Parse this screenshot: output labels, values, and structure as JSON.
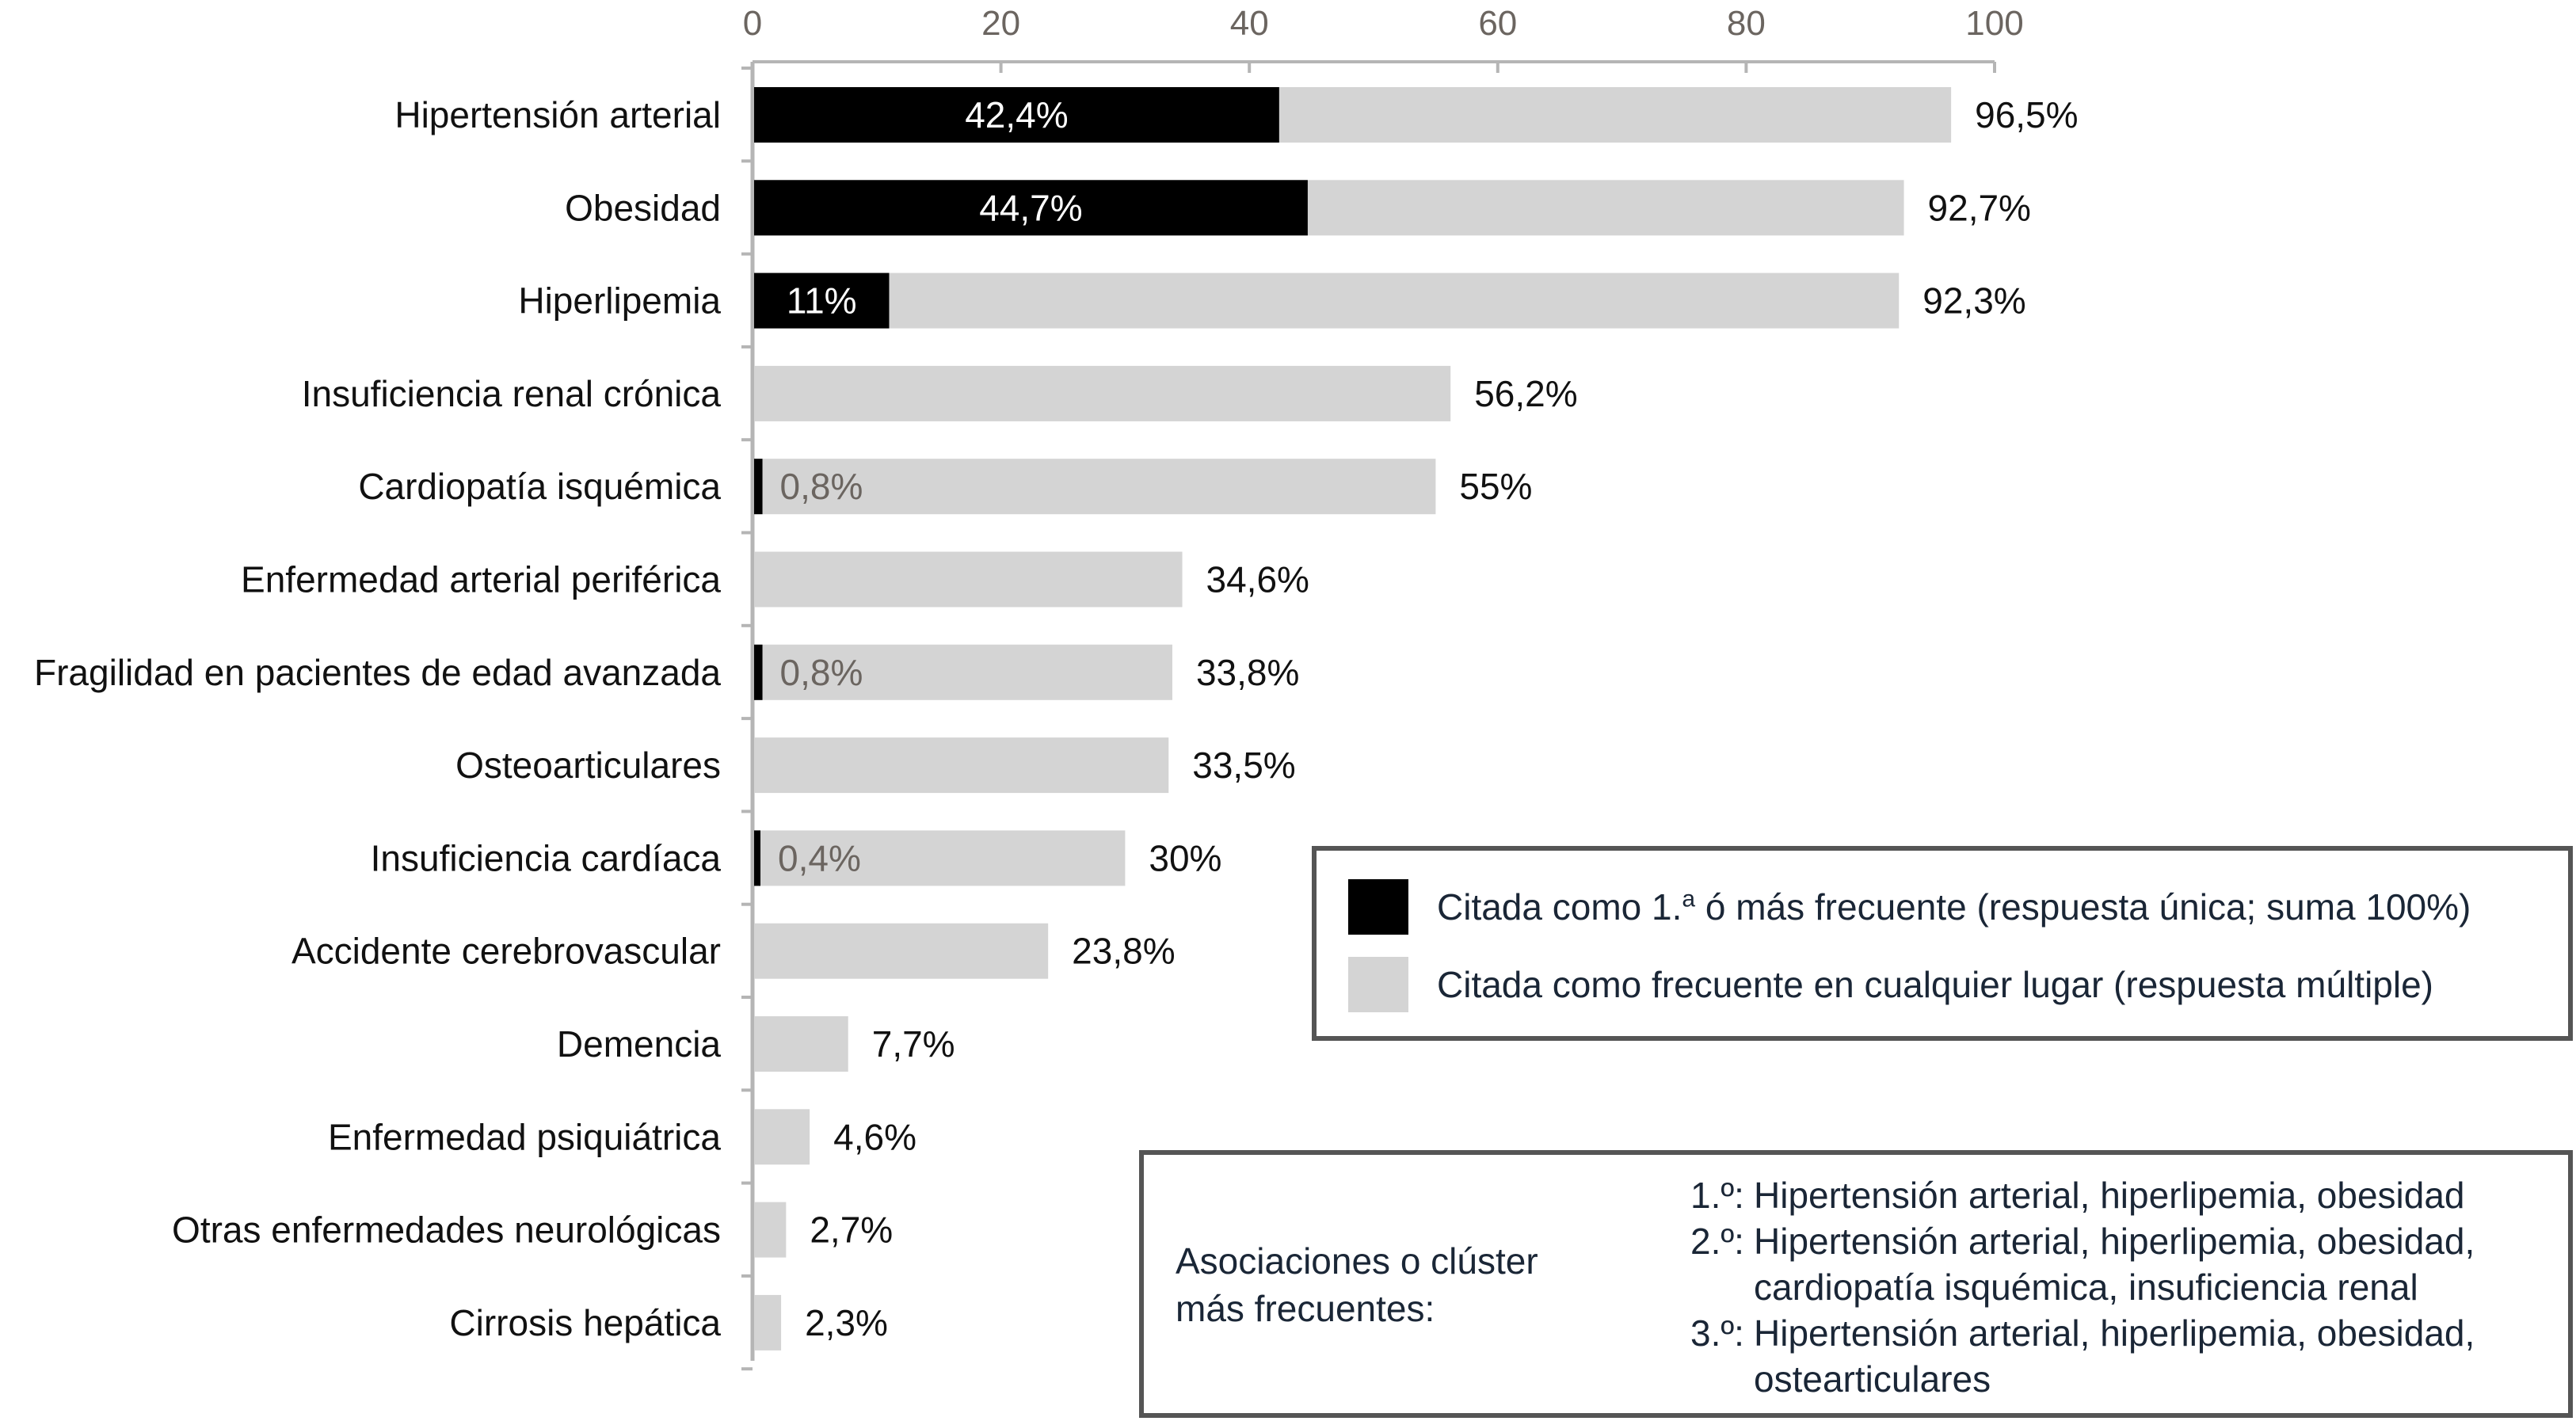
{
  "chart_data": {
    "type": "bar",
    "orientation": "horizontal",
    "xlim": [
      0,
      100
    ],
    "x_ticks": [
      "0",
      "20",
      "40",
      "60",
      "80",
      "100"
    ],
    "grid": false,
    "categories": [
      "Hipertensión arterial",
      "Obesidad",
      "Hiperlipemia",
      "Insuficiencia renal crónica",
      "Cardiopatía isquémica",
      "Enfermedad arterial periférica",
      "Fragilidad en pacientes de edad avanzada",
      "Osteoarticulares",
      "Insuficiencia cardíaca",
      "Accidente cerebrovascular",
      "Demencia",
      "Enfermedad psiquiátrica",
      "Otras enfermedades neurológicas",
      "Cirrosis hepática"
    ],
    "series": [
      {
        "name": "Citada como 1.ª ó más frecuente (respuesta única; suma 100%)",
        "color": "#000000",
        "values": [
          42.4,
          44.7,
          11,
          null,
          0.8,
          null,
          0.8,
          null,
          0.4,
          null,
          null,
          null,
          null,
          null
        ],
        "labels": [
          "42,4%",
          "44,7%",
          "11%",
          "",
          "0,8%",
          "",
          "0,8%",
          "",
          "0,4%",
          "",
          "",
          "",
          "",
          ""
        ]
      },
      {
        "name": "Citada como frecuente en cualquier lugar (respuesta múltiple)",
        "color": "#d4d4d4",
        "values": [
          96.5,
          92.7,
          92.3,
          56.2,
          55,
          34.6,
          33.8,
          33.5,
          30,
          23.8,
          7.7,
          4.6,
          2.7,
          2.3
        ],
        "labels": [
          "96,5%",
          "92,7%",
          "92,3%",
          "56,2%",
          "55%",
          "34,6%",
          "33,8%",
          "33,5%",
          "30%",
          "23,8%",
          "7,7%",
          "4,6%",
          "2,7%",
          "2,3%"
        ]
      }
    ],
    "legend": {
      "position": "right",
      "items": [
        {
          "text_main": "Citada como 1.",
          "text_sup": "a",
          "text_rest": " ó más frecuente (respuesta única; suma 100%)",
          "color": "#000000"
        },
        {
          "text": "Citada como frecuente en cualquier lugar (respuesta múltiple)",
          "color": "#d4d4d4"
        }
      ]
    }
  },
  "associations": {
    "title_line1": "Asociaciones o clúster",
    "title_line2": "más frecuentes:",
    "items": [
      {
        "num": "1.º:",
        "text": "Hipertensión arterial, hiperlipemia, obesidad"
      },
      {
        "num": "2.º:",
        "text": "Hipertensión arterial, hiperlipemia, obesidad, cardiopatía isquémica, insuficiencia renal"
      },
      {
        "num": "3.º:",
        "text": "Hipertensión arterial, hiperlipemia, obesidad, ostearticulares"
      }
    ]
  }
}
